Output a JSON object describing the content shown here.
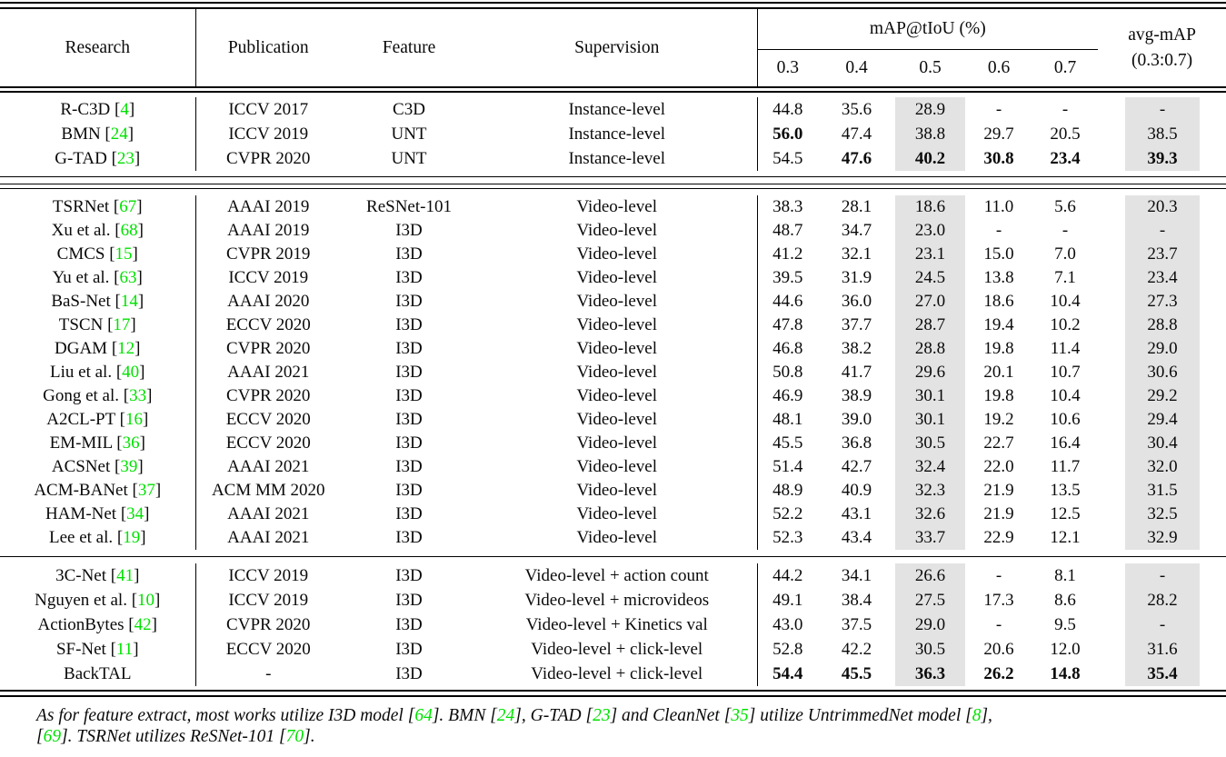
{
  "colors": {
    "citation_green": "#00e100",
    "shade_gray": "#e3e3e3"
  },
  "header": {
    "research": "Research",
    "publication": "Publication",
    "feature": "Feature",
    "supervision": "Supervision",
    "map_group": "mAP@tIoU (%)",
    "tiou": [
      "0.3",
      "0.4",
      "0.5",
      "0.6",
      "0.7"
    ],
    "avg_line1": "avg-mAP",
    "avg_line2": "(0.3:0.7)"
  },
  "sections": [
    {
      "rows": [
        {
          "name": "R-C3D",
          "cite": "4",
          "pub": "ICCV 2017",
          "feat": "C3D",
          "sup": "Instance-level",
          "vals": [
            "44.8",
            "35.6",
            "28.9",
            "-",
            "-",
            "-"
          ],
          "bold": [
            0,
            0,
            0,
            0,
            0,
            0
          ]
        },
        {
          "name": "BMN",
          "cite": "24",
          "pub": "ICCV 2019",
          "feat": "UNT",
          "sup": "Instance-level",
          "vals": [
            "56.0",
            "47.4",
            "38.8",
            "29.7",
            "20.5",
            "38.5"
          ],
          "bold": [
            1,
            0,
            0,
            0,
            0,
            0
          ]
        },
        {
          "name": "G-TAD",
          "cite": "23",
          "pub": "CVPR 2020",
          "feat": "UNT",
          "sup": "Instance-level",
          "vals": [
            "54.5",
            "47.6",
            "40.2",
            "30.8",
            "23.4",
            "39.3"
          ],
          "bold": [
            0,
            1,
            1,
            1,
            1,
            1
          ]
        }
      ]
    },
    {
      "rows": [
        {
          "name": "TSRNet",
          "cite": "67",
          "pub": "AAAI 2019",
          "feat": "ReSNet-101",
          "sup": "Video-level",
          "vals": [
            "38.3",
            "28.1",
            "18.6",
            "11.0",
            "5.6",
            "20.3"
          ],
          "bold": [
            0,
            0,
            0,
            0,
            0,
            0
          ]
        },
        {
          "name": "Xu et al.",
          "cite": "68",
          "pub": "AAAI 2019",
          "feat": "I3D",
          "sup": "Video-level",
          "vals": [
            "48.7",
            "34.7",
            "23.0",
            "-",
            "-",
            "-"
          ],
          "bold": [
            0,
            0,
            0,
            0,
            0,
            0
          ]
        },
        {
          "name": "CMCS",
          "cite": "15",
          "pub": "CVPR 2019",
          "feat": "I3D",
          "sup": "Video-level",
          "vals": [
            "41.2",
            "32.1",
            "23.1",
            "15.0",
            "7.0",
            "23.7"
          ],
          "bold": [
            0,
            0,
            0,
            0,
            0,
            0
          ]
        },
        {
          "name": "Yu et al.",
          "cite": "63",
          "pub": "ICCV 2019",
          "feat": "I3D",
          "sup": "Video-level",
          "vals": [
            "39.5",
            "31.9",
            "24.5",
            "13.8",
            "7.1",
            "23.4"
          ],
          "bold": [
            0,
            0,
            0,
            0,
            0,
            0
          ]
        },
        {
          "name": "BaS-Net",
          "cite": "14",
          "pub": "AAAI 2020",
          "feat": "I3D",
          "sup": "Video-level",
          "vals": [
            "44.6",
            "36.0",
            "27.0",
            "18.6",
            "10.4",
            "27.3"
          ],
          "bold": [
            0,
            0,
            0,
            0,
            0,
            0
          ]
        },
        {
          "name": "TSCN",
          "cite": "17",
          "pub": "ECCV 2020",
          "feat": "I3D",
          "sup": "Video-level",
          "vals": [
            "47.8",
            "37.7",
            "28.7",
            "19.4",
            "10.2",
            "28.8"
          ],
          "bold": [
            0,
            0,
            0,
            0,
            0,
            0
          ]
        },
        {
          "name": "DGAM",
          "cite": "12",
          "pub": "CVPR 2020",
          "feat": "I3D",
          "sup": "Video-level",
          "vals": [
            "46.8",
            "38.2",
            "28.8",
            "19.8",
            "11.4",
            "29.0"
          ],
          "bold": [
            0,
            0,
            0,
            0,
            0,
            0
          ]
        },
        {
          "name": "Liu et al.",
          "cite": "40",
          "pub": "AAAI 2021",
          "feat": "I3D",
          "sup": "Video-level",
          "vals": [
            "50.8",
            "41.7",
            "29.6",
            "20.1",
            "10.7",
            "30.6"
          ],
          "bold": [
            0,
            0,
            0,
            0,
            0,
            0
          ]
        },
        {
          "name": "Gong et al.",
          "cite": "33",
          "pub": "CVPR 2020",
          "feat": "I3D",
          "sup": "Video-level",
          "vals": [
            "46.9",
            "38.9",
            "30.1",
            "19.8",
            "10.4",
            "29.2"
          ],
          "bold": [
            0,
            0,
            0,
            0,
            0,
            0
          ]
        },
        {
          "name": "A2CL-PT",
          "cite": "16",
          "pub": "ECCV 2020",
          "feat": "I3D",
          "sup": "Video-level",
          "vals": [
            "48.1",
            "39.0",
            "30.1",
            "19.2",
            "10.6",
            "29.4"
          ],
          "bold": [
            0,
            0,
            0,
            0,
            0,
            0
          ]
        },
        {
          "name": "EM-MIL",
          "cite": "36",
          "pub": "ECCV 2020",
          "feat": "I3D",
          "sup": "Video-level",
          "vals": [
            "45.5",
            "36.8",
            "30.5",
            "22.7",
            "16.4",
            "30.4"
          ],
          "bold": [
            0,
            0,
            0,
            0,
            0,
            0
          ]
        },
        {
          "name": "ACSNet",
          "cite": "39",
          "pub": "AAAI 2021",
          "feat": "I3D",
          "sup": "Video-level",
          "vals": [
            "51.4",
            "42.7",
            "32.4",
            "22.0",
            "11.7",
            "32.0"
          ],
          "bold": [
            0,
            0,
            0,
            0,
            0,
            0
          ]
        },
        {
          "name": "ACM-BANet",
          "cite": "37",
          "pub": "ACM MM 2020",
          "feat": "I3D",
          "sup": "Video-level",
          "vals": [
            "48.9",
            "40.9",
            "32.3",
            "21.9",
            "13.5",
            "31.5"
          ],
          "bold": [
            0,
            0,
            0,
            0,
            0,
            0
          ]
        },
        {
          "name": "HAM-Net",
          "cite": "34",
          "pub": "AAAI 2021",
          "feat": "I3D",
          "sup": "Video-level",
          "vals": [
            "52.2",
            "43.1",
            "32.6",
            "21.9",
            "12.5",
            "32.5"
          ],
          "bold": [
            0,
            0,
            0,
            0,
            0,
            0
          ]
        },
        {
          "name": "Lee et al.",
          "cite": "19",
          "pub": "AAAI 2021",
          "feat": "I3D",
          "sup": "Video-level",
          "vals": [
            "52.3",
            "43.4",
            "33.7",
            "22.9",
            "12.1",
            "32.9"
          ],
          "bold": [
            0,
            0,
            0,
            0,
            0,
            0
          ]
        }
      ]
    },
    {
      "rows": [
        {
          "name": "3C-Net",
          "cite": "41",
          "pub": "ICCV 2019",
          "feat": "I3D",
          "sup": "Video-level + action count",
          "vals": [
            "44.2",
            "34.1",
            "26.6",
            "-",
            "8.1",
            "-"
          ],
          "bold": [
            0,
            0,
            0,
            0,
            0,
            0
          ]
        },
        {
          "name": "Nguyen et al.",
          "cite": "10",
          "pub": "ICCV 2019",
          "feat": "I3D",
          "sup": "Video-level + microvideos",
          "vals": [
            "49.1",
            "38.4",
            "27.5",
            "17.3",
            "8.6",
            "28.2"
          ],
          "bold": [
            0,
            0,
            0,
            0,
            0,
            0
          ]
        },
        {
          "name": "ActionBytes",
          "cite": "42",
          "pub": "CVPR 2020",
          "feat": "I3D",
          "sup": "Video-level + Kinetics val",
          "vals": [
            "43.0",
            "37.5",
            "29.0",
            "-",
            "9.5",
            "-"
          ],
          "bold": [
            0,
            0,
            0,
            0,
            0,
            0
          ]
        },
        {
          "name": "SF-Net",
          "cite": "11",
          "pub": "ECCV 2020",
          "feat": "I3D",
          "sup": "Video-level + click-level",
          "vals": [
            "52.8",
            "42.2",
            "30.5",
            "20.6",
            "12.0",
            "31.6"
          ],
          "bold": [
            0,
            0,
            0,
            0,
            0,
            0
          ]
        },
        {
          "name": "BackTAL",
          "cite": null,
          "pub": "-",
          "feat": "I3D",
          "sup": "Video-level + click-level",
          "vals": [
            "54.4",
            "45.5",
            "36.3",
            "26.2",
            "14.8",
            "35.4"
          ],
          "bold": [
            1,
            1,
            1,
            1,
            1,
            1
          ]
        }
      ]
    }
  ],
  "footnote_segments": [
    {
      "text": "As for feature extract, most works utilize I3D model ["
    },
    {
      "cite": "64"
    },
    {
      "text": "]. BMN ["
    },
    {
      "cite": "24"
    },
    {
      "text": "], G-TAD ["
    },
    {
      "cite": "23"
    },
    {
      "text": "] and CleanNet ["
    },
    {
      "cite": "35"
    },
    {
      "text": "] utilize UntrimmedNet model ["
    },
    {
      "cite": "8"
    },
    {
      "text": "],"
    },
    {
      "break": true
    },
    {
      "text": "["
    },
    {
      "cite": "69"
    },
    {
      "text": "]. TSRNet utilizes ReSNet-101 ["
    },
    {
      "cite": "70"
    },
    {
      "text": "]."
    }
  ]
}
